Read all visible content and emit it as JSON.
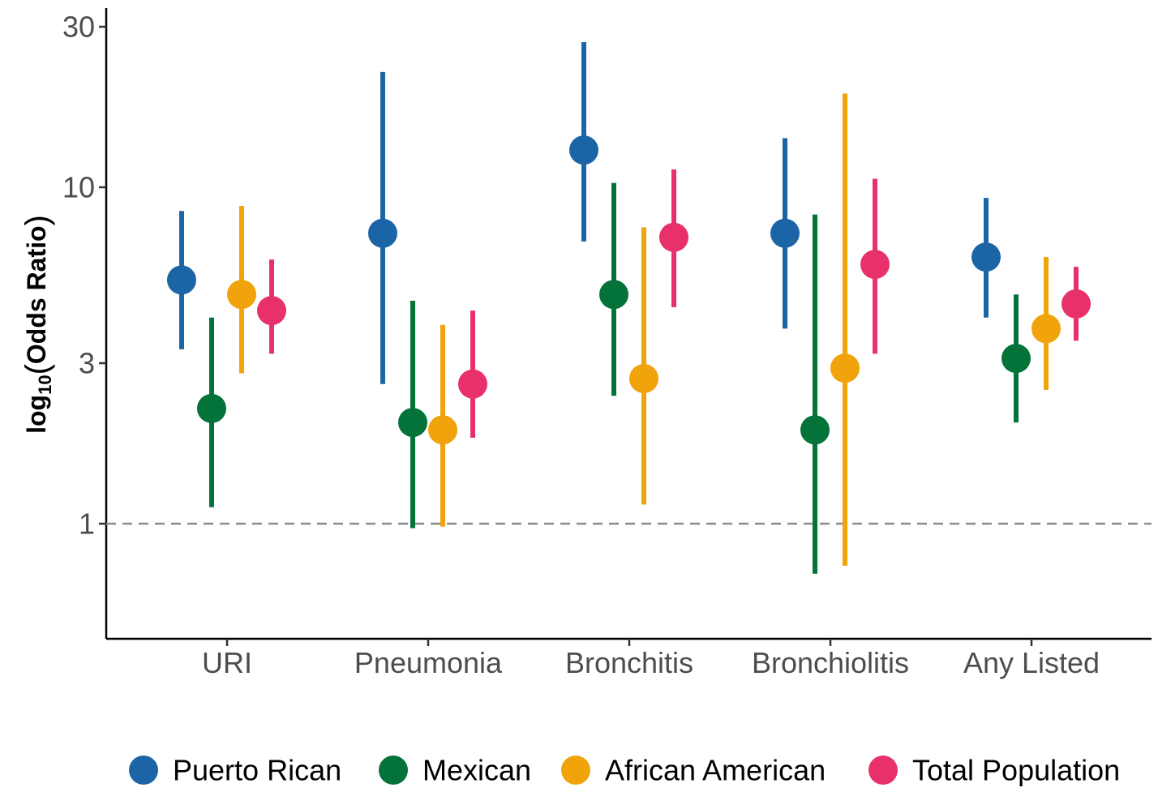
{
  "chart_data": {
    "type": "scatter",
    "subtype": "point-range (odds ratio with confidence intervals)",
    "title": "",
    "xlabel": "",
    "ylabel": {
      "prefix": "log",
      "subscript": "10",
      "open_paren": "(",
      "main": "Odds Ratio",
      "close_paren": ")"
    },
    "y_scale": "log10",
    "ylim": [
      0.6,
      34
    ],
    "y_ticks": [
      {
        "value": 1,
        "label": "1"
      },
      {
        "value": 3,
        "label": "3"
      },
      {
        "value": 10,
        "label": "10"
      },
      {
        "value": 30,
        "label": "30"
      }
    ],
    "reference_line": {
      "value": 1,
      "style": "dashed",
      "color": "#8c8c8c"
    },
    "grid": false,
    "legend_position": "bottom",
    "categories": [
      "URI",
      "Pneumonia",
      "Bronchitis",
      "Bronchiolitis",
      "Any Listed"
    ],
    "series": [
      {
        "name": "Puerto Rican",
        "color": "#1b65a6",
        "values": [
          5.3,
          7.3,
          12.9,
          7.3,
          6.2
        ],
        "lower": [
          3.3,
          2.6,
          6.9,
          3.8,
          4.1
        ],
        "upper": [
          8.5,
          22.0,
          27.0,
          14.0,
          9.3
        ]
      },
      {
        "name": "Mexican",
        "color": "#04733a",
        "values": [
          2.2,
          2.0,
          4.8,
          1.9,
          3.1
        ],
        "lower": [
          1.12,
          0.97,
          2.4,
          0.71,
          2.0
        ],
        "upper": [
          4.1,
          4.6,
          10.3,
          8.3,
          4.8
        ]
      },
      {
        "name": "African American",
        "color": "#f0a30a",
        "values": [
          4.8,
          1.9,
          2.7,
          2.9,
          3.8
        ],
        "lower": [
          2.8,
          0.98,
          1.14,
          0.75,
          2.5
        ],
        "upper": [
          8.8,
          3.9,
          7.6,
          19.0,
          6.2
        ]
      },
      {
        "name": "Total Population",
        "color": "#e8306b",
        "values": [
          4.3,
          2.6,
          7.1,
          5.9,
          4.5
        ],
        "lower": [
          3.2,
          1.8,
          4.4,
          3.2,
          3.5
        ],
        "upper": [
          6.1,
          4.3,
          11.3,
          10.6,
          5.8
        ]
      }
    ]
  }
}
